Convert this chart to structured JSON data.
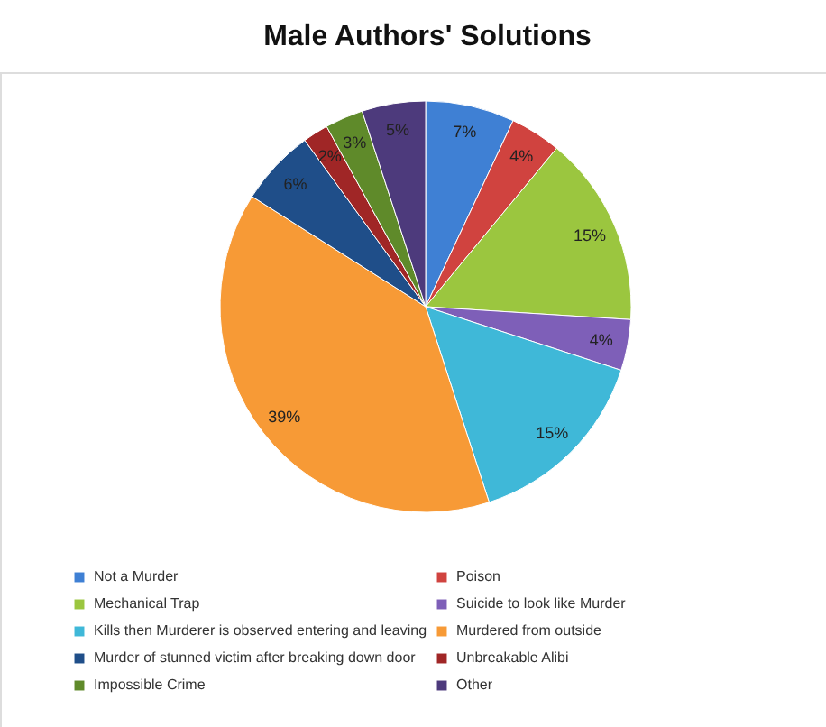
{
  "chart_data": {
    "type": "pie",
    "title": "Male Authors' Solutions",
    "categories": [
      "Not a Murder",
      "Poison",
      "Mechanical Trap",
      "Suicide to look like Murder",
      "Kills then Murderer is observed entering and leaving",
      "Murdered from outside",
      "Murder of stunned victim after breaking down door",
      "Unbreakable Alibi",
      "Impossible Crime",
      "Other"
    ],
    "values": [
      7,
      4,
      15,
      4,
      15,
      39,
      6,
      2,
      3,
      5
    ],
    "value_labels": [
      "7%",
      "4%",
      "15%",
      "4%",
      "15%",
      "39%",
      "6%",
      "2%",
      "3%",
      "5%"
    ],
    "colors": [
      "#3f80d4",
      "#d0433f",
      "#9bc63f",
      "#7e5fb8",
      "#3fb8d8",
      "#f79a36",
      "#1f4e89",
      "#a02626",
      "#5f8a2a",
      "#4d3a7c"
    ],
    "legend": "bottom"
  }
}
